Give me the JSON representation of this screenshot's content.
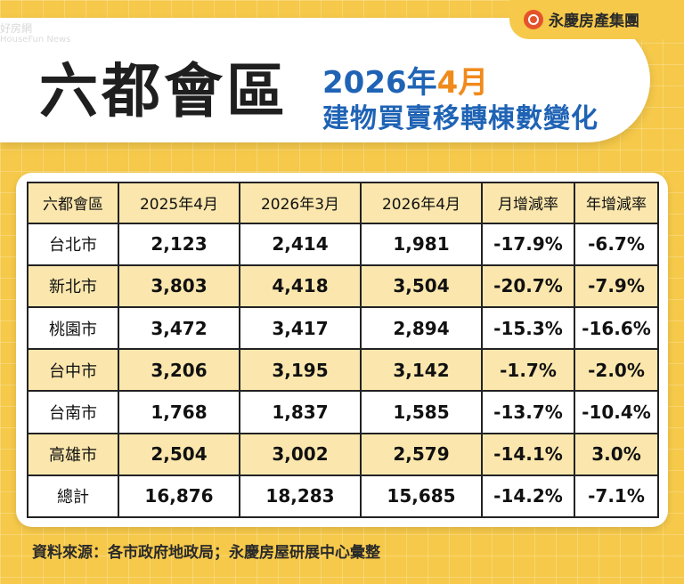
{
  "watermark": {
    "zh": "好房網",
    "en": "HouseFun News"
  },
  "brand": {
    "name": "永慶房產集團",
    "icon": "yongqing-logo-icon"
  },
  "title": {
    "main": "六都會區",
    "sub_year": "2026年",
    "sub_month": "4月",
    "sub_line2": "建物買賣移轉棟數變化"
  },
  "colors": {
    "background": "#f6c94a",
    "title_blue": "#1f63b5",
    "highlight_orange": "#f08a1c",
    "row_highlight": "#fbe7ad"
  },
  "chart_data": {
    "type": "table",
    "columns": [
      "六都會區",
      "2025年4月",
      "2026年3月",
      "2026年4月",
      "月增減率",
      "年增減率"
    ],
    "rows": [
      [
        "台北市",
        "2,123",
        "2,414",
        "1,981",
        "-17.9%",
        "-6.7%"
      ],
      [
        "新北市",
        "3,803",
        "4,418",
        "3,504",
        "-20.7%",
        "-7.9%"
      ],
      [
        "桃園市",
        "3,472",
        "3,417",
        "2,894",
        "-15.3%",
        "-16.6%"
      ],
      [
        "台中市",
        "3,206",
        "3,195",
        "3,142",
        "-1.7%",
        "-2.0%"
      ],
      [
        "台南市",
        "1,768",
        "1,837",
        "1,585",
        "-13.7%",
        "-10.4%"
      ],
      [
        "高雄市",
        "2,504",
        "3,002",
        "2,579",
        "-14.1%",
        "3.0%"
      ],
      [
        "總計",
        "16,876",
        "18,283",
        "15,685",
        "-14.2%",
        "-7.1%"
      ]
    ]
  },
  "source": "資料來源：各市政府地政局；永慶房屋研展中心彙整"
}
